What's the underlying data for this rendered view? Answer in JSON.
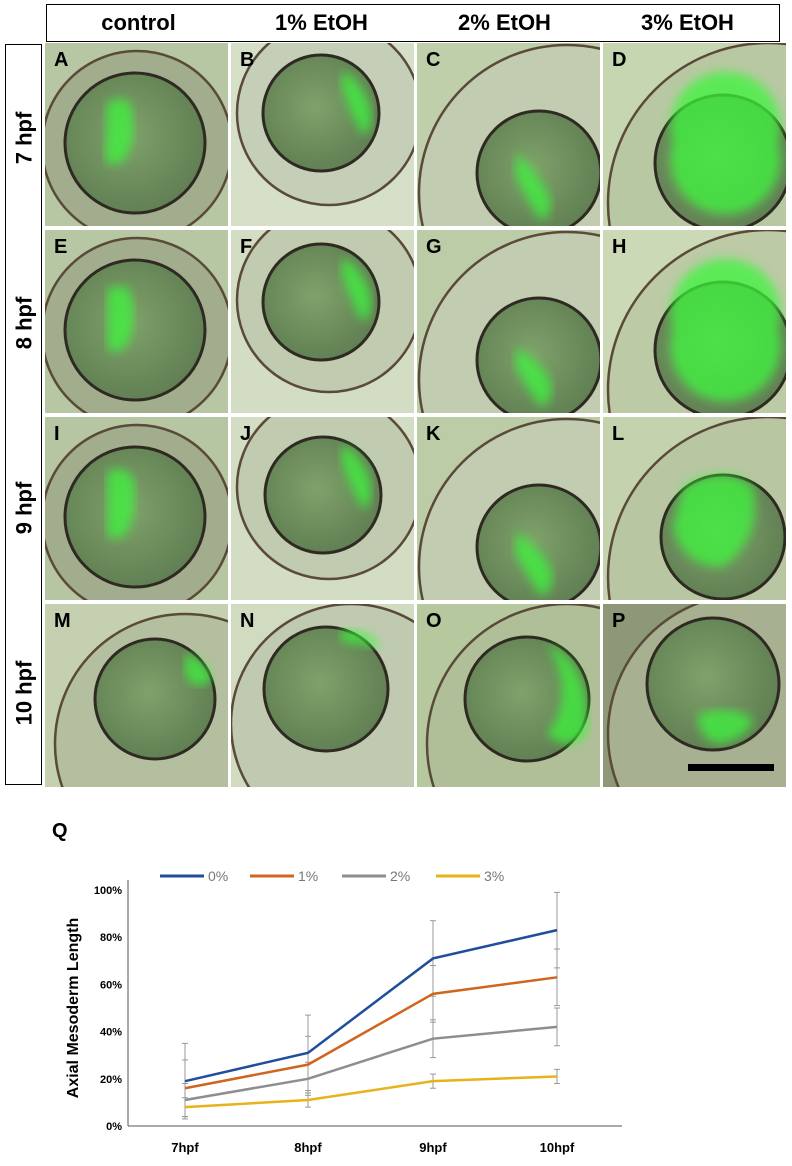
{
  "columns": [
    "control",
    "1% EtOH",
    "2% EtOH",
    "3% EtOH"
  ],
  "rows": [
    "7 hpf",
    "8 hpf",
    "9 hpf",
    "10 hpf"
  ],
  "panels": [
    {
      "letter": "A",
      "bg": "#b7c6a3",
      "chorion": "#a1ad8c"
    },
    {
      "letter": "B",
      "bg": "#d6e0c8",
      "chorion": "#c5cfb7"
    },
    {
      "letter": "C",
      "bg": "#bfcfa9",
      "chorion": "#c2ccb0"
    },
    {
      "letter": "D",
      "bg": "#c6d6b0",
      "chorion": "#b8c8a2"
    },
    {
      "letter": "E",
      "bg": "#b7c6a3",
      "chorion": "#a1ad8c"
    },
    {
      "letter": "F",
      "bg": "#d3ddc4",
      "chorion": "#c0cbb0"
    },
    {
      "letter": "G",
      "bg": "#bccca6",
      "chorion": "#c2ccb0"
    },
    {
      "letter": "H",
      "bg": "#cbd9b6",
      "chorion": "#bccaa6"
    },
    {
      "letter": "I",
      "bg": "#b6c5a2",
      "chorion": "#a1ad8c"
    },
    {
      "letter": "J",
      "bg": "#d3ddc4",
      "chorion": "#c0cbb0"
    },
    {
      "letter": "K",
      "bg": "#bccca6",
      "chorion": "#c2ccb0"
    },
    {
      "letter": "L",
      "bg": "#c4d3ae",
      "chorion": "#b8c6a2"
    },
    {
      "letter": "M",
      "bg": "#c5d0b0",
      "chorion": "#b4bfa0"
    },
    {
      "letter": "N",
      "bg": "#d0dbc0",
      "chorion": "#bfcab0"
    },
    {
      "letter": "O",
      "bg": "#b6c89e",
      "chorion": "#b0bf98"
    },
    {
      "letter": "P",
      "bg": "#8c9878",
      "chorion": "#a7b090"
    }
  ],
  "chart_data": {
    "type": "line",
    "panel_label": "Q",
    "ylabel": "Axial Mesoderm Length",
    "xlabel": "",
    "categories": [
      "7hpf",
      "8hpf",
      "9hpf",
      "10hpf"
    ],
    "ylim": [
      0,
      100
    ],
    "yticks": [
      "0%",
      "20%",
      "40%",
      "60%",
      "80%",
      "100%"
    ],
    "ytick_values": [
      0,
      20,
      40,
      60,
      80,
      100
    ],
    "legend_position": "top",
    "series": [
      {
        "name": "0%",
        "color": "#1f4e9b",
        "values": [
          19,
          31,
          71,
          83
        ],
        "err": [
          16,
          16,
          16,
          16
        ]
      },
      {
        "name": "1%",
        "color": "#d0651f",
        "values": [
          16,
          26,
          56,
          63
        ],
        "err": [
          12,
          12,
          12,
          12
        ]
      },
      {
        "name": "2%",
        "color": "#8e8e8e",
        "values": [
          11,
          20,
          37,
          42
        ],
        "err": [
          7,
          7,
          8,
          8
        ]
      },
      {
        "name": "3%",
        "color": "#e8b21a",
        "values": [
          8,
          11,
          19,
          21
        ],
        "err": [
          4,
          3,
          3,
          3
        ]
      }
    ]
  }
}
